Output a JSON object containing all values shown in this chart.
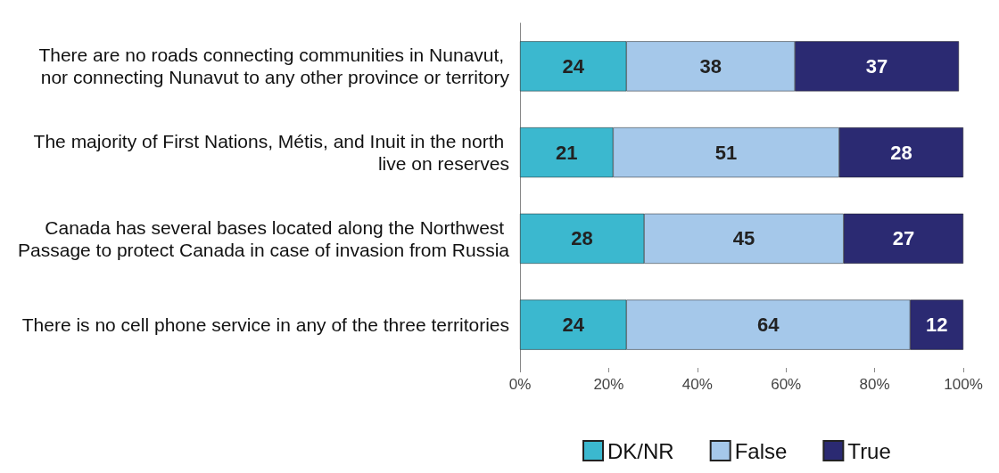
{
  "chart_data": {
    "type": "bar",
    "orientation": "horizontal",
    "stacked": true,
    "data_labels": true,
    "legend": "bottom",
    "grid": false,
    "categories": [
      "There are no roads connecting communities in Nunavut, nor connecting Nunavut to any other province or territory",
      "The majority of First Nations, Métis, and Inuit in the north live on reserves",
      "Canada has several bases located along the Northwest Passage to protect Canada in case of invasion from Russia",
      "There is no cell phone service in any of the three territories"
    ],
    "series": [
      {
        "name": "DK/NR",
        "color": "#3bb8cf",
        "values": [
          24,
          21,
          28,
          24
        ]
      },
      {
        "name": "False",
        "color": "#a5c8ea",
        "values": [
          38,
          51,
          45,
          64
        ]
      },
      {
        "name": "True",
        "color": "#2b2a72",
        "values": [
          37,
          28,
          27,
          12
        ]
      }
    ],
    "xlim": [
      0,
      100
    ],
    "xticks": [
      {
        "value": 0,
        "label": "0%"
      },
      {
        "value": 20,
        "label": "20%"
      },
      {
        "value": 40,
        "label": "40%"
      },
      {
        "value": 60,
        "label": "60%"
      },
      {
        "value": 80,
        "label": "80%"
      },
      {
        "value": 100,
        "label": "100%"
      }
    ]
  }
}
